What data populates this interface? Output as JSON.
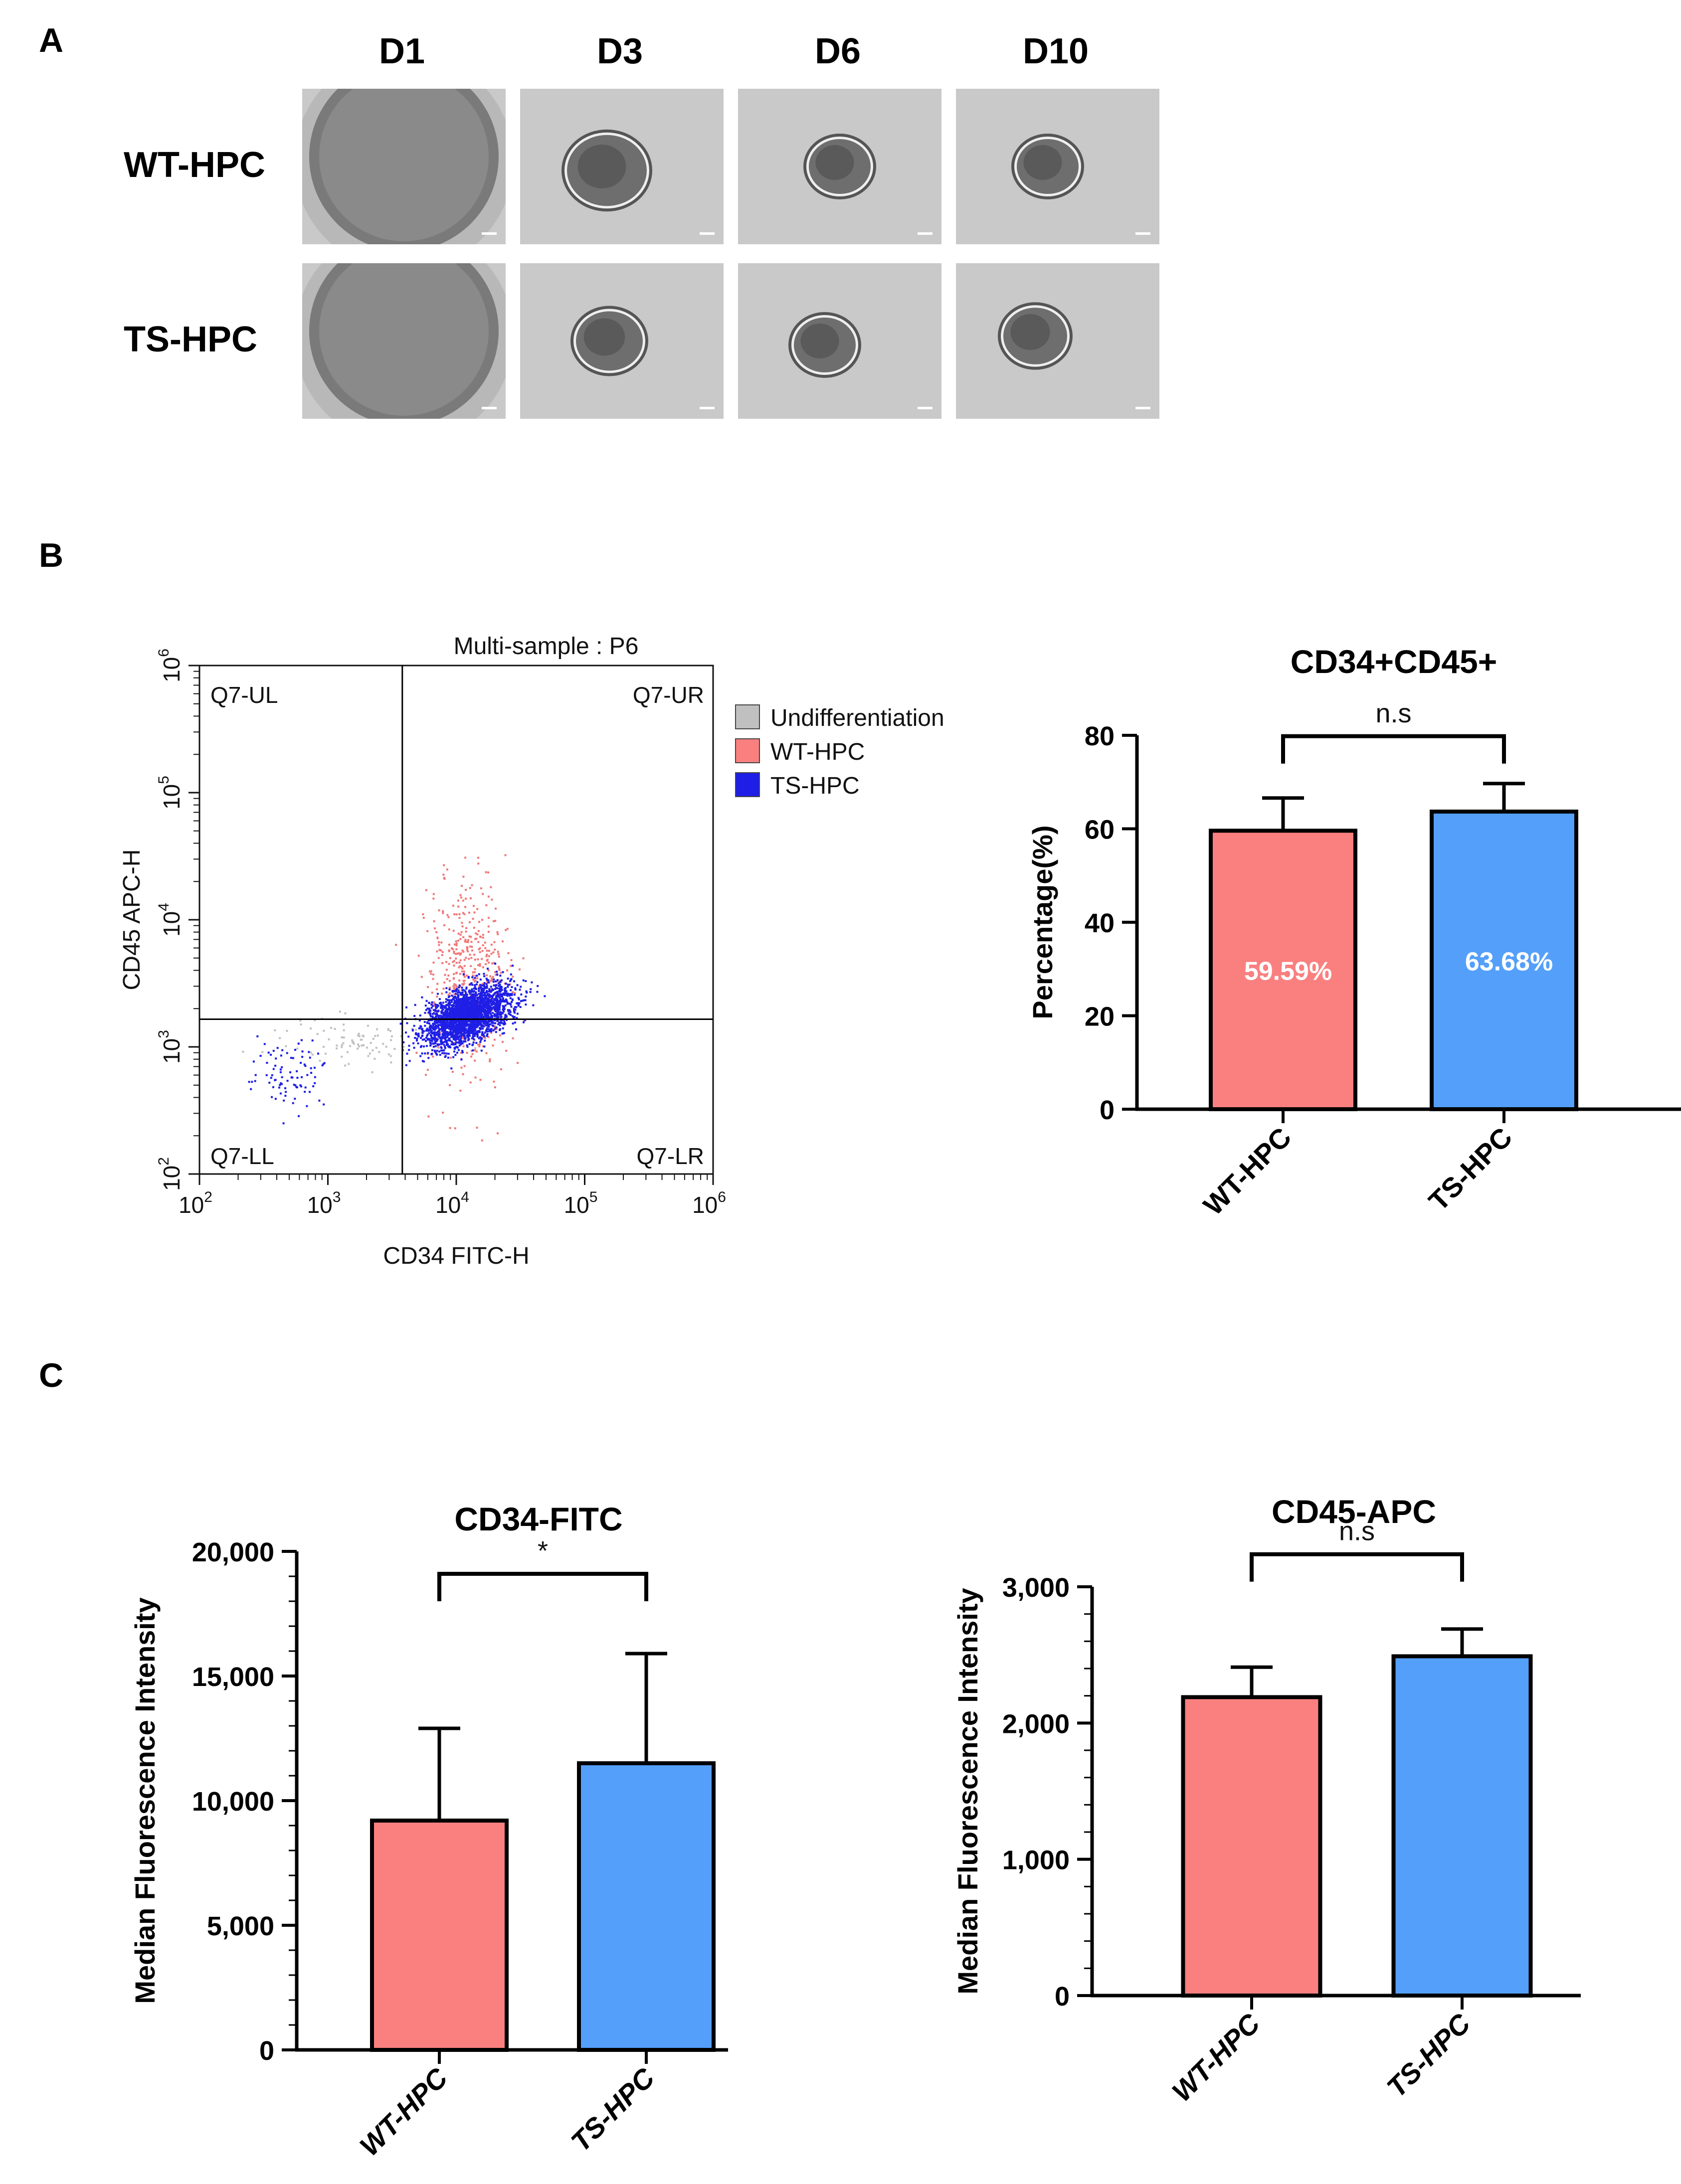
{
  "panels": {
    "a": "A",
    "b": "B",
    "c": "C"
  },
  "panel_a": {
    "columns": [
      "D1",
      "D3",
      "D6",
      "D10"
    ],
    "rows": [
      "WT-HPC",
      "TS-HPC"
    ]
  },
  "colors": {
    "wt": "#fa8080",
    "ts": "#549ffa",
    "undiff": "#c0c0c0",
    "ts_flow": "#1e1ee6",
    "wt_flow": "#f07878"
  },
  "chart_data": [
    {
      "type": "scatter",
      "title": "Multi-sample : P6",
      "xlabel": "CD34 FITC-H",
      "ylabel": "CD45 APC-H",
      "xscale": "log",
      "yscale": "log",
      "xlim": [
        100,
        1000000
      ],
      "ylim": [
        100,
        1000000
      ],
      "x_ticks": [
        "10",
        "10",
        "10",
        "10",
        "10"
      ],
      "x_tick_exps": [
        "2",
        "3",
        "4",
        "5",
        "6"
      ],
      "y_ticks": [
        "10",
        "10",
        "10",
        "10",
        "10"
      ],
      "y_tick_exps": [
        "2",
        "3",
        "4",
        "5",
        "6"
      ],
      "gate": {
        "x": 3800,
        "y": 1650
      },
      "quadrants": {
        "ul": "Q7-UL",
        "ur": "Q7-UR",
        "ll": "Q7-LL",
        "lr": "Q7-LR"
      },
      "legend": [
        {
          "label": "Undifferentiation",
          "color": "#c0c0c0"
        },
        {
          "label": "WT-HPC",
          "color": "#fa8080"
        },
        {
          "label": "TS-HPC",
          "color": "#1e1ee6"
        }
      ],
      "populations": [
        {
          "name": "Undifferentiation",
          "center": [
            1600,
            1150
          ],
          "spread": [
            0.33,
            0.1
          ],
          "count": 90
        },
        {
          "name": "WT-HPC",
          "center": [
            12000,
            3500
          ],
          "spread": [
            0.16,
            0.38
          ],
          "count": 500
        },
        {
          "name": "TS-HPC",
          "center": [
            12000,
            1800
          ],
          "spread": [
            0.17,
            0.1
          ],
          "count": 2600
        },
        {
          "name": "TS-HPC",
          "center": [
            480,
            620
          ],
          "spread": [
            0.15,
            0.14
          ],
          "count": 90
        }
      ]
    },
    {
      "type": "bar",
      "title": "CD34+CD45+",
      "ylabel": "Percentage(%)",
      "categories": [
        "WT-HPC",
        "TS-HPC"
      ],
      "values": [
        59.59,
        63.68
      ],
      "errors": [
        7,
        6
      ],
      "value_labels": [
        "59.59%",
        "63.68%"
      ],
      "ylim": [
        0,
        80
      ],
      "yticks": [
        "0",
        "20",
        "40",
        "60",
        "80"
      ],
      "significance": "n.s"
    },
    {
      "type": "bar",
      "title": "CD34-FITC",
      "ylabel": "Median Fluorescence Intensity",
      "categories": [
        "WT-HPC",
        "TS-HPC"
      ],
      "values": [
        9200,
        11500
      ],
      "errors": [
        3700,
        4400
      ],
      "ylim": [
        0,
        20000
      ],
      "yticks": [
        "0",
        "5,000",
        "10,000",
        "15,000",
        "20,000"
      ],
      "significance": "*"
    },
    {
      "type": "bar",
      "title": "CD45-APC",
      "ylabel": "Median Fluorescence Intensity",
      "categories": [
        "WT-HPC",
        "TS-HPC"
      ],
      "values": [
        2190,
        2490
      ],
      "errors": [
        220,
        200
      ],
      "ylim": [
        0,
        3000
      ],
      "yticks": [
        "0",
        "1,000",
        "2,000",
        "3,000"
      ],
      "significance": "n.s"
    }
  ]
}
